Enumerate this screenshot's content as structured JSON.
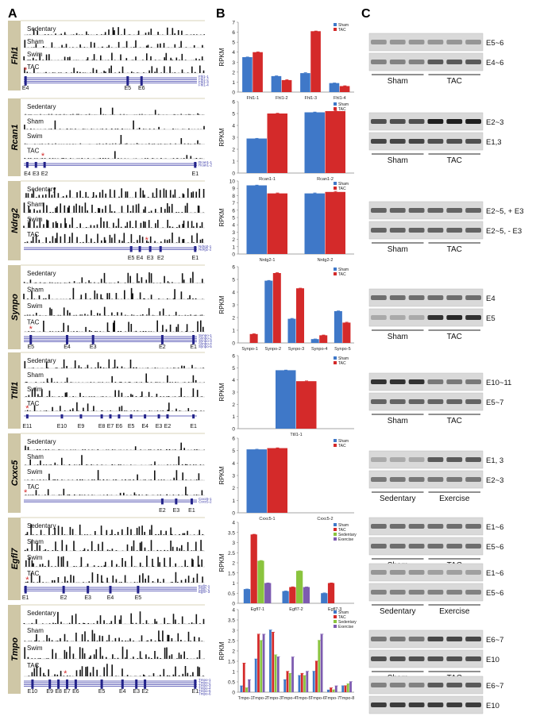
{
  "panel_labels": [
    "A",
    "B",
    "C"
  ],
  "chart_data": [
    {
      "type": "bar",
      "gene": "Fhl1",
      "ylabel": "RPKM",
      "ylim": [
        0,
        7
      ],
      "yticks": [
        "0",
        "1",
        "2",
        "3",
        "4",
        "5",
        "6",
        "7"
      ],
      "categories": [
        "Fhl1-1",
        "Fhl1-2",
        "Fhl1-3",
        "Fhl1-4"
      ],
      "series": [
        {
          "name": "Sham",
          "color": "#3f78c8",
          "values": [
            3.5,
            1.6,
            1.9,
            0.9
          ]
        },
        {
          "name": "TAC",
          "color": "#d42a2a",
          "values": [
            4.0,
            1.2,
            6.1,
            0.6
          ]
        }
      ],
      "legend": "top-right"
    },
    {
      "type": "bar",
      "gene": "Rcan1",
      "ylabel": "RPKM",
      "ylim": [
        0,
        6
      ],
      "yticks": [
        "0",
        "1",
        "2",
        "3",
        "4",
        "5",
        "6"
      ],
      "categories": [
        "Rcan1-1",
        "Rcan1-2"
      ],
      "series": [
        {
          "name": "Sham",
          "color": "#3f78c8",
          "values": [
            2.9,
            5.1
          ]
        },
        {
          "name": "TAC",
          "color": "#d42a2a",
          "values": [
            5.0,
            5.2
          ]
        }
      ],
      "legend": "top-right"
    },
    {
      "type": "bar",
      "gene": "Ndrg2",
      "ylabel": "RPKM",
      "ylim": [
        0,
        10
      ],
      "yticks": [
        "0",
        "1",
        "2",
        "3",
        "4",
        "5",
        "6",
        "7",
        "8",
        "9",
        "10"
      ],
      "categories": [
        "Nrdg2-1",
        "Nrdg2-2"
      ],
      "series": [
        {
          "name": "Sham",
          "color": "#3f78c8",
          "values": [
            9.4,
            8.3
          ]
        },
        {
          "name": "TAC",
          "color": "#d42a2a",
          "values": [
            8.3,
            8.5
          ]
        }
      ],
      "legend": "top-right"
    },
    {
      "type": "bar",
      "gene": "Synpo",
      "ylabel": "RPKM",
      "ylim": [
        0,
        6
      ],
      "yticks": [
        "0",
        "1",
        "2",
        "3",
        "4",
        "5",
        "6"
      ],
      "categories": [
        "Synpo-1",
        "Synpo-2",
        "Synpo-3",
        "Synpo-4",
        "Synpo-5"
      ],
      "series": [
        {
          "name": "Sham",
          "color": "#3f78c8",
          "values": [
            0.0,
            4.9,
            1.9,
            0.3,
            2.5
          ]
        },
        {
          "name": "TAC",
          "color": "#d42a2a",
          "values": [
            0.7,
            5.5,
            4.3,
            0.6,
            1.6
          ]
        }
      ],
      "legend": "top-right"
    },
    {
      "type": "bar",
      "gene": "Ttll1",
      "ylabel": "RPKM",
      "ylim": [
        0,
        6
      ],
      "yticks": [
        "0",
        "1",
        "2",
        "3",
        "4",
        "5",
        "6"
      ],
      "categories": [
        "Ttll1-1"
      ],
      "series": [
        {
          "name": "Sham",
          "color": "#3f78c8",
          "values": [
            4.8
          ]
        },
        {
          "name": "TAC",
          "color": "#d42a2a",
          "values": [
            3.9
          ]
        }
      ],
      "legend": "top-right"
    },
    {
      "type": "bar",
      "gene": "Cxxc5",
      "ylabel": "RPKM",
      "ylim": [
        0,
        6
      ],
      "yticks": [
        "0",
        "1",
        "2",
        "3",
        "4",
        "5",
        "6"
      ],
      "categories": [
        "Cxxc5-1",
        "Cxxc5-2"
      ],
      "series": [
        {
          "name": "Sham",
          "color": "#3f78c8",
          "values": [
            5.1,
            0
          ]
        },
        {
          "name": "TAC",
          "color": "#d42a2a",
          "values": [
            5.2,
            0
          ]
        }
      ],
      "legend": "top-right"
    },
    {
      "type": "bar",
      "gene": "Egfl7",
      "ylabel": "RPKM",
      "ylim": [
        0,
        4
      ],
      "yticks": [
        "0",
        "0.5",
        "1",
        "1.5",
        "2",
        "2.5",
        "3",
        "3.5",
        "4"
      ],
      "categories": [
        "Egfl7-1",
        "Egfl7-2",
        "Egfl7-3"
      ],
      "series": [
        {
          "name": "Sham",
          "color": "#3f78c8",
          "values": [
            0.7,
            0.6,
            0.5
          ]
        },
        {
          "name": "TAC",
          "color": "#d42a2a",
          "values": [
            3.4,
            0.8,
            1.0
          ]
        },
        {
          "name": "Sedentary",
          "color": "#8ac43e",
          "values": [
            2.1,
            1.6,
            0
          ]
        },
        {
          "name": "Exercise",
          "color": "#7d5bb0",
          "values": [
            1.0,
            0.8,
            0
          ]
        }
      ],
      "legend": "top-right"
    },
    {
      "type": "bar",
      "gene": "Tmpo",
      "ylabel": "RPKM",
      "ylim": [
        0,
        4
      ],
      "yticks": [
        "0",
        "0.5",
        "1",
        "1.5",
        "2",
        "2.5",
        "3",
        "3.5",
        "4"
      ],
      "categories": [
        "Tmpo-1",
        "Tmpo-2",
        "Tmpo-3",
        "Tmpo-4",
        "Tmpo-5",
        "Tmpo-6",
        "Tmpo-7",
        "Tmpo-8"
      ],
      "series": [
        {
          "name": "Sham",
          "color": "#3f78c8",
          "values": [
            0.3,
            1.6,
            3.0,
            0.6,
            0.8,
            1.0,
            0.1,
            0.3
          ]
        },
        {
          "name": "TAC",
          "color": "#d42a2a",
          "values": [
            1.4,
            2.8,
            2.9,
            1.0,
            0.9,
            1.5,
            0.2,
            0.3
          ]
        },
        {
          "name": "Sedentary",
          "color": "#8ac43e",
          "values": [
            0.2,
            2.5,
            1.8,
            0.9,
            0.8,
            2.5,
            0.1,
            0.4
          ]
        },
        {
          "name": "Exercise",
          "color": "#7d5bb0",
          "values": [
            0.6,
            2.8,
            1.7,
            1.7,
            1.0,
            2.8,
            0.3,
            0.5
          ]
        }
      ],
      "legend": "top-right"
    }
  ],
  "tracks": [
    {
      "gene": "Fhl1",
      "tracks": [
        "Sedentary",
        "Sham",
        "Swim",
        "TAC"
      ],
      "exons": [
        {
          "label": "E4",
          "pos": 0.01
        },
        {
          "label": "E5",
          "pos": 0.6
        },
        {
          "label": "E6",
          "pos": 0.68
        }
      ],
      "isoforms": [
        "Fhl1-1",
        "Fhl1-2",
        "Fhl1-3",
        "Fhl1-4"
      ],
      "star": 0.01,
      "direction": "fwd",
      "density": 0.4
    },
    {
      "gene": "Rcan1",
      "tracks": [
        "Sedentary",
        "Sham",
        "Swim",
        "TAC"
      ],
      "exons": [
        {
          "label": "E4",
          "pos": 0.02
        },
        {
          "label": "E3",
          "pos": 0.07
        },
        {
          "label": "E2",
          "pos": 0.12
        },
        {
          "label": "E1",
          "pos": 0.99
        }
      ],
      "isoforms": [
        "Rcan1-1",
        "Rcan1-2"
      ],
      "star": 0.11,
      "direction": "rev",
      "density": 0.1
    },
    {
      "gene": "Ndrg2",
      "tracks": [
        "Sedentary",
        "Sham",
        "Swim",
        "TAC"
      ],
      "exons": [
        {
          "label": "E5",
          "pos": 0.62
        },
        {
          "label": "E4",
          "pos": 0.67
        },
        {
          "label": "E3",
          "pos": 0.73
        },
        {
          "label": "E2",
          "pos": 0.79
        },
        {
          "label": "E1",
          "pos": 0.99
        }
      ],
      "isoforms": [
        "Ndrg2-1",
        "Ndrg2-2"
      ],
      "star": 0.71,
      "direction": "rev",
      "density": 0.9
    },
    {
      "gene": "Synpo",
      "tracks": [
        "Sedentary",
        "Sham",
        "Swim",
        "TAC"
      ],
      "exons": [
        {
          "label": "E5",
          "pos": 0.04
        },
        {
          "label": "E4",
          "pos": 0.25
        },
        {
          "label": "E3",
          "pos": 0.4
        },
        {
          "label": "E2",
          "pos": 0.8
        },
        {
          "label": "E1",
          "pos": 0.98
        }
      ],
      "isoforms": [
        "Synpo-1",
        "Synpo-2",
        "Synpo-3",
        "Synpo-4",
        "Synpo-5"
      ],
      "star": 0.04,
      "direction": "rev",
      "density": 0.35
    },
    {
      "gene": "Ttll1",
      "tracks": [
        "Sedentary",
        "Sham",
        "Swim",
        "TAC"
      ],
      "exons": [
        {
          "label": "E11",
          "pos": 0.02
        },
        {
          "label": "E10",
          "pos": 0.22
        },
        {
          "label": "E9",
          "pos": 0.33
        },
        {
          "label": "E8",
          "pos": 0.45
        },
        {
          "label": "E7",
          "pos": 0.5
        },
        {
          "label": "E6",
          "pos": 0.55
        },
        {
          "label": "E5",
          "pos": 0.62
        },
        {
          "label": "E4",
          "pos": 0.7
        },
        {
          "label": "E3",
          "pos": 0.78
        },
        {
          "label": "E2",
          "pos": 0.83
        },
        {
          "label": "E1",
          "pos": 0.98
        }
      ],
      "isoforms": [],
      "star": 0.02,
      "direction": "rev",
      "density": 0.3
    },
    {
      "gene": "Cxxc5",
      "tracks": [
        "Sedentary",
        "Sham",
        "Swim",
        "TAC"
      ],
      "exons": [
        {
          "label": "E2",
          "pos": 0.8
        },
        {
          "label": "E3",
          "pos": 0.88
        },
        {
          "label": "E1",
          "pos": 0.97
        }
      ],
      "isoforms": [
        "Cxxc5-1",
        "Cxxc5-2"
      ],
      "star": 0.01,
      "direction": "rev",
      "density": 0.15
    },
    {
      "gene": "Egfl7",
      "tracks": [
        "Sedentary",
        "Sham",
        "Swim",
        "TAC"
      ],
      "exons": [
        {
          "label": "E1",
          "pos": 0.01
        },
        {
          "label": "E2",
          "pos": 0.23
        },
        {
          "label": "E3",
          "pos": 0.37
        },
        {
          "label": "E4",
          "pos": 0.5
        },
        {
          "label": "E5",
          "pos": 0.66
        }
      ],
      "isoforms": [
        "Egfl7-1",
        "Egfl7-2",
        "Egfl7-3"
      ],
      "star": 0.02,
      "direction": "fwd",
      "density": 0.55
    },
    {
      "gene": "Tmpo",
      "tracks": [
        "Sedentary",
        "Sham",
        "Swim",
        "TAC"
      ],
      "exons": [
        {
          "label": "E10",
          "pos": 0.05
        },
        {
          "label": "E9",
          "pos": 0.15
        },
        {
          "label": "E8",
          "pos": 0.2
        },
        {
          "label": "E7",
          "pos": 0.25
        },
        {
          "label": "E6",
          "pos": 0.3
        },
        {
          "label": "E5",
          "pos": 0.45
        },
        {
          "label": "E4",
          "pos": 0.57
        },
        {
          "label": "E3",
          "pos": 0.65
        },
        {
          "label": "E2",
          "pos": 0.7
        },
        {
          "label": "E1",
          "pos": 0.99
        }
      ],
      "isoforms": [
        "Tmpo-1",
        "Tmpo-2",
        "Tmpo-3",
        "Tmpo-4",
        "Tmpo-5",
        "Tmpo-6",
        "Tmpo-7",
        "Tmpo-8"
      ],
      "star": 0.24,
      "direction": "rev",
      "density": 0.6
    }
  ],
  "gels": [
    {
      "bands": [
        {
          "label": "E5~6",
          "intensity": [
            0.35,
            0.35,
            0.35,
            0.35,
            0.35,
            0.35
          ]
        },
        {
          "label": "E4~6",
          "intensity": [
            0.45,
            0.45,
            0.45,
            0.65,
            0.65,
            0.65
          ]
        }
      ],
      "groups": [
        "Sham",
        "TAC"
      ]
    },
    {
      "bands": [
        {
          "label": "E2~3",
          "intensity": [
            0.7,
            0.7,
            0.7,
            0.95,
            0.95,
            0.95
          ]
        },
        {
          "label": "E1,3",
          "intensity": [
            0.75,
            0.75,
            0.75,
            0.7,
            0.7,
            0.7
          ]
        }
      ],
      "groups": [
        "Sham",
        "TAC"
      ]
    },
    {
      "bands": [
        {
          "label": "E2~5, + E3",
          "intensity": [
            0.6,
            0.6,
            0.6,
            0.6,
            0.6,
            0.6
          ]
        },
        {
          "label": "E2~5, - E3",
          "intensity": [
            0.6,
            0.6,
            0.6,
            0.6,
            0.6,
            0.6
          ]
        }
      ],
      "groups": [
        "Sham",
        "TAC"
      ]
    },
    {
      "bands": [
        {
          "label": "E4",
          "intensity": [
            0.55,
            0.55,
            0.55,
            0.55,
            0.55,
            0.55
          ]
        },
        {
          "label": "E5",
          "intensity": [
            0.25,
            0.25,
            0.25,
            0.85,
            0.9,
            0.85
          ]
        }
      ],
      "groups": [
        "Sham",
        "TAC"
      ]
    },
    {
      "bands": [
        {
          "label": "E10~11",
          "intensity": [
            0.85,
            0.85,
            0.85,
            0.5,
            0.5,
            0.5
          ]
        },
        {
          "label": "E5~7",
          "intensity": [
            0.6,
            0.6,
            0.6,
            0.6,
            0.6,
            0.6
          ]
        }
      ],
      "groups": [
        "Sham",
        "TAC"
      ]
    },
    {
      "bands": [
        {
          "label": "E1, 3",
          "intensity": [
            0.25,
            0.25,
            0.25,
            0.65,
            0.65,
            0.65
          ]
        },
        {
          "label": "E2~3",
          "intensity": [
            0.5,
            0.5,
            0.5,
            0.5,
            0.5,
            0.5
          ]
        }
      ],
      "groups": [
        "Sedentary",
        "Exercise"
      ]
    },
    {
      "bands": [
        {
          "label": "E1~6",
          "intensity": [
            0.55,
            0.55,
            0.55,
            0.55,
            0.55,
            0.55
          ]
        },
        {
          "label": "E5~6",
          "intensity": [
            0.55,
            0.55,
            0.55,
            0.55,
            0.55,
            0.55
          ]
        }
      ],
      "groups": [
        "Sham",
        "TAC"
      ]
    },
    {
      "bands": [
        {
          "label": "E1~6",
          "intensity": [
            0.35,
            0.35,
            0.35,
            0.3,
            0.3,
            0.3
          ]
        },
        {
          "label": "E5~6",
          "intensity": [
            0.45,
            0.45,
            0.45,
            0.45,
            0.45,
            0.45
          ]
        }
      ],
      "groups": [
        "Sedentary",
        "Exercise"
      ]
    },
    {
      "bands": [
        {
          "label": "E6~7",
          "intensity": [
            0.5,
            0.5,
            0.5,
            0.75,
            0.75,
            0.75
          ]
        },
        {
          "label": "E10",
          "intensity": [
            0.7,
            0.7,
            0.7,
            0.7,
            0.7,
            0.7
          ]
        }
      ],
      "groups": [
        "Sham",
        "TAC"
      ]
    },
    {
      "bands": [
        {
          "label": "E6~7",
          "intensity": [
            0.45,
            0.45,
            0.45,
            0.65,
            0.65,
            0.65
          ]
        },
        {
          "label": "E10",
          "intensity": [
            0.8,
            0.8,
            0.8,
            0.8,
            0.8,
            0.8
          ]
        }
      ],
      "groups": [
        "Sedentary",
        "Exercise"
      ]
    }
  ]
}
